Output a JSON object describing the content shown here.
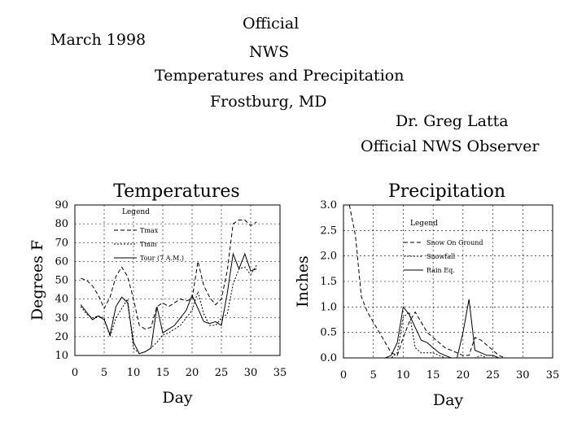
{
  "header": {
    "date": "March 1998",
    "line1": "Official",
    "line2": "NWS",
    "line3": "Temperatures and Precipitation",
    "line4": "Frostburg, MD",
    "observer_name": "Dr. Greg Latta",
    "observer_title": "Official NWS Observer"
  },
  "chart_data": [
    {
      "type": "line",
      "title": "Temperatures",
      "xlabel": "Day",
      "ylabel": "Degrees F",
      "xlim": [
        0,
        35
      ],
      "ylim": [
        10,
        90
      ],
      "x_ticks": [
        "0",
        "5",
        "10",
        "15",
        "20",
        "25",
        "30",
        "35"
      ],
      "y_ticks": [
        "10",
        "20",
        "30",
        "40",
        "50",
        "60",
        "70",
        "80",
        "90"
      ],
      "grid": true,
      "legend_title": "Legend",
      "series": [
        {
          "name": "Tmax",
          "style": "dashed",
          "x": [
            1,
            2,
            3,
            4,
            5,
            6,
            7,
            8,
            9,
            10,
            11,
            12,
            13,
            14,
            15,
            16,
            17,
            18,
            19,
            20,
            21,
            22,
            23,
            24,
            25,
            26,
            27,
            28,
            29,
            30,
            31
          ],
          "y": [
            51,
            50,
            47,
            42,
            35,
            41,
            52,
            57,
            52,
            40,
            26,
            24,
            25,
            36,
            38,
            36,
            38,
            40,
            39,
            40,
            60,
            47,
            41,
            37,
            40,
            55,
            80,
            82,
            82,
            79,
            81
          ]
        },
        {
          "name": "Tmin",
          "style": "dotted",
          "x": [
            1,
            2,
            3,
            4,
            5,
            6,
            7,
            8,
            9,
            10,
            11,
            12,
            13,
            14,
            15,
            16,
            17,
            18,
            19,
            20,
            21,
            22,
            23,
            24,
            25,
            26,
            27,
            28,
            29,
            30,
            31
          ],
          "y": [
            36,
            32,
            30,
            31,
            30,
            20,
            30,
            35,
            40,
            14,
            11,
            12,
            14,
            17,
            21,
            22,
            24,
            26,
            30,
            34,
            44,
            32,
            26,
            26,
            30,
            32,
            48,
            56,
            57,
            53,
            58
          ]
        },
        {
          "name": "Tour (7 A.M.)",
          "style": "solid",
          "x": [
            1,
            2,
            3,
            4,
            5,
            6,
            7,
            8,
            9,
            10,
            11,
            12,
            13,
            14,
            15,
            16,
            17,
            18,
            19,
            20,
            21,
            22,
            23,
            24,
            25,
            26,
            27,
            28,
            29,
            30,
            31
          ],
          "y": [
            37,
            33,
            29,
            31,
            29,
            21,
            36,
            41,
            38,
            17,
            11,
            12,
            14,
            36,
            22,
            24,
            26,
            30,
            34,
            42,
            35,
            28,
            27,
            28,
            26,
            43,
            64,
            56,
            64,
            55,
            56
          ]
        }
      ]
    },
    {
      "type": "line",
      "title": "Precipitation",
      "xlabel": "Day",
      "ylabel": "Inches",
      "xlim": [
        0,
        35
      ],
      "ylim": [
        0.0,
        3.0
      ],
      "x_ticks": [
        "0",
        "5",
        "10",
        "15",
        "20",
        "25",
        "30",
        "35"
      ],
      "y_ticks": [
        "0.0",
        "0.5",
        "1.0",
        "1.5",
        "2.0",
        "2.5",
        "3.0"
      ],
      "grid": true,
      "legend_title": "Legend",
      "series": [
        {
          "name": "Snow On Ground",
          "style": "dashed",
          "x": [
            1,
            2,
            3,
            4,
            5,
            6,
            7,
            8,
            9,
            10,
            11,
            12,
            13,
            14,
            15,
            16,
            17,
            18,
            19,
            20,
            21,
            22,
            23,
            24,
            25,
            26,
            27,
            28,
            29,
            30,
            31
          ],
          "y": [
            3.0,
            2.4,
            1.2,
            0.9,
            0.7,
            0.5,
            0.3,
            0.1,
            0.05,
            0.4,
            0.7,
            0.9,
            0.7,
            0.5,
            0.4,
            0.3,
            0.2,
            0.15,
            0.1,
            0.05,
            0.05,
            0.4,
            0.35,
            0.25,
            0.15,
            0.05,
            0,
            0,
            0,
            0,
            0
          ]
        },
        {
          "name": "Snowfall",
          "style": "dotted",
          "x": [
            1,
            2,
            3,
            4,
            5,
            6,
            7,
            8,
            9,
            10,
            11,
            12,
            13,
            14,
            15,
            16,
            17,
            18,
            19,
            20,
            21,
            22,
            23,
            24,
            25,
            26,
            27,
            28,
            29,
            30,
            31
          ],
          "y": [
            0,
            0,
            0,
            0,
            0,
            0,
            0,
            0,
            0.1,
            0.8,
            0.9,
            0.2,
            0.1,
            0.1,
            0.1,
            0.05,
            0,
            0,
            0,
            0,
            0,
            0,
            0.05,
            0,
            0,
            0,
            0,
            0,
            0,
            0,
            0
          ]
        },
        {
          "name": "Rain Eq.",
          "style": "solid",
          "x": [
            1,
            2,
            3,
            4,
            5,
            6,
            7,
            8,
            9,
            10,
            11,
            12,
            13,
            14,
            15,
            16,
            17,
            18,
            19,
            20,
            21,
            22,
            23,
            24,
            25,
            26,
            27,
            28,
            29,
            30,
            31
          ],
          "y": [
            0,
            0,
            0,
            0,
            0,
            0,
            0,
            0.05,
            0.3,
            1.0,
            0.85,
            0.6,
            0.35,
            0.3,
            0.2,
            0.1,
            0.05,
            0,
            0,
            0.5,
            1.15,
            0.15,
            0.1,
            0.05,
            0.05,
            0,
            0,
            0,
            0,
            0,
            0
          ]
        }
      ]
    }
  ]
}
